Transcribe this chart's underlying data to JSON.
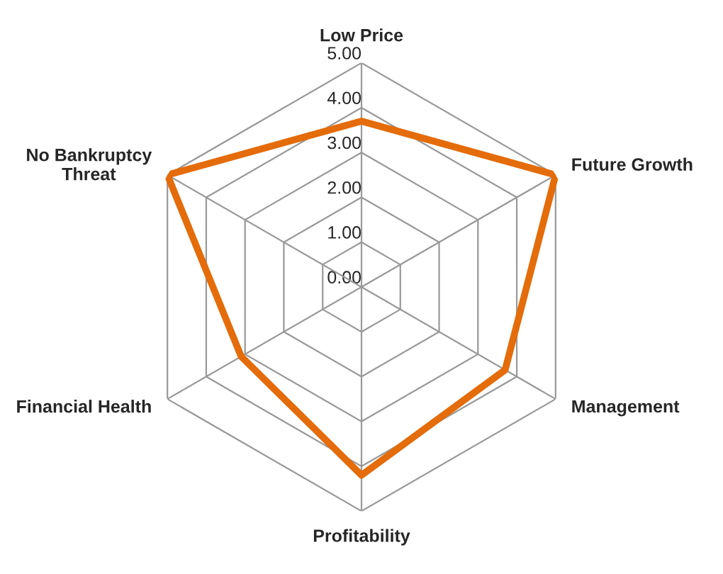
{
  "chart_data": {
    "type": "radar",
    "categories": [
      "Low Price",
      "Future Growth",
      "Management",
      "Profitability",
      "Financial Health",
      "No Bankruptcy\nThreat"
    ],
    "series": [
      {
        "color": "#e46c0a",
        "values": [
          3.7,
          5.0,
          3.7,
          4.2,
          3.1,
          5.0
        ]
      }
    ],
    "ylim": [
      0,
      5
    ],
    "yticks": [
      {
        "value": 0,
        "label": "0.00"
      },
      {
        "value": 1,
        "label": "1.00"
      },
      {
        "value": 2,
        "label": "2.00"
      },
      {
        "value": 3,
        "label": "3.00"
      },
      {
        "value": 4,
        "label": "4.00"
      },
      {
        "value": 5,
        "label": "5.00"
      }
    ],
    "grid": true,
    "marker": "none",
    "line_style": "solid"
  }
}
